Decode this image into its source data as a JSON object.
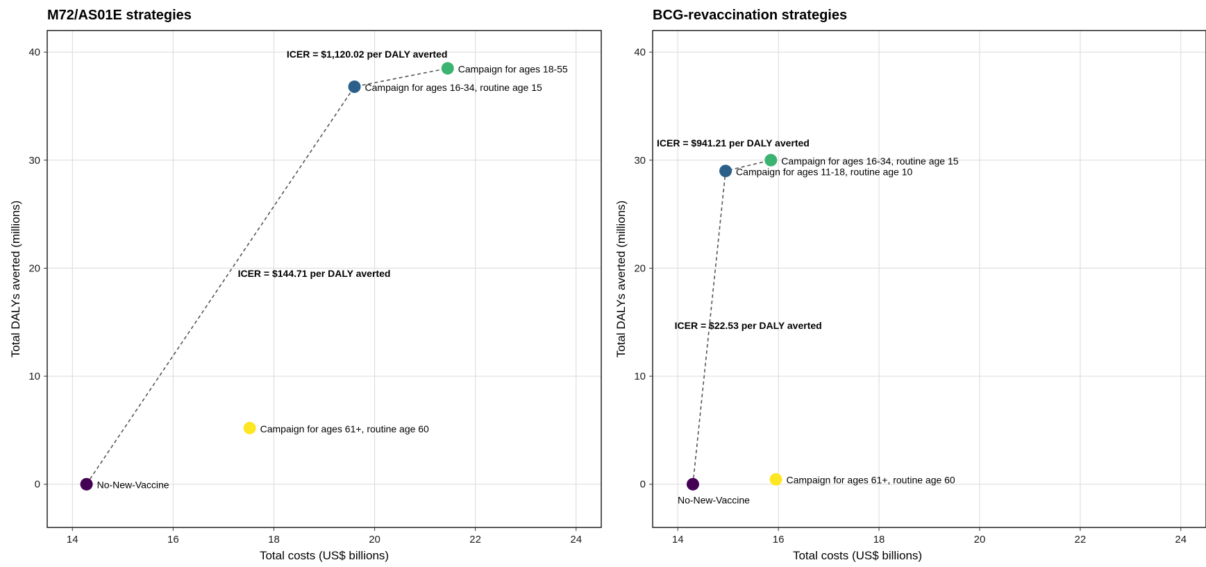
{
  "chart_data": [
    {
      "type": "scatter",
      "title": "M72/AS01E strategies",
      "xlabel": "Total costs (US$ billions)",
      "ylabel": "Total DALYs averted (millions)",
      "xlim": [
        13.5,
        24.5
      ],
      "ylim": [
        -4,
        42
      ],
      "xticks": [
        14,
        16,
        18,
        20,
        22,
        24
      ],
      "yticks": [
        0,
        10,
        20,
        30,
        40
      ],
      "grid": true,
      "points": [
        {
          "label": "No-New-Vaccine",
          "x": 14.28,
          "y": 0,
          "color": "#440154",
          "label_pos": "right"
        },
        {
          "label": "Campaign for ages 61+, routine age 60",
          "x": 17.52,
          "y": 5.2,
          "color": "#FDE725",
          "label_pos": "right"
        },
        {
          "label": "Campaign for ages 16-34, routine age 15",
          "x": 19.6,
          "y": 36.8,
          "color": "#2C5F8A",
          "label_pos": "right"
        },
        {
          "label": "Campaign for ages 18-55",
          "x": 21.45,
          "y": 38.5,
          "color": "#3CB371",
          "label_pos": "right"
        }
      ],
      "frontier": [
        0,
        2,
        3
      ],
      "icer_annotations": [
        {
          "text": "ICER = $144.71 per DALY averted",
          "x": 18.8,
          "y": 19.5
        },
        {
          "text": "ICER = $1,120.02 per DALY averted",
          "x": 19.85,
          "y": 39.8
        }
      ]
    },
    {
      "type": "scatter",
      "title": "BCG-revaccination strategies",
      "xlabel": "Total costs (US$ billions)",
      "ylabel": "Total DALYs averted (millions)",
      "xlim": [
        13.5,
        24.5
      ],
      "ylim": [
        -4,
        42
      ],
      "xticks": [
        14,
        16,
        18,
        20,
        22,
        24
      ],
      "yticks": [
        0,
        10,
        20,
        30,
        40
      ],
      "grid": true,
      "points": [
        {
          "label": "No-New-Vaccine",
          "x": 14.3,
          "y": 0,
          "color": "#440154",
          "label_pos": "below"
        },
        {
          "label": "Campaign for ages 61+, routine age 60",
          "x": 15.95,
          "y": 0.45,
          "color": "#FDE725",
          "label_pos": "right"
        },
        {
          "label": "Campaign for ages 11-18, routine age 10",
          "x": 14.95,
          "y": 29.0,
          "color": "#2C5F8A",
          "label_pos": "right"
        },
        {
          "label": "Campaign for ages 16-34, routine age 15",
          "x": 15.85,
          "y": 30.0,
          "color": "#3CB371",
          "label_pos": "right"
        }
      ],
      "frontier": [
        0,
        2,
        3
      ],
      "icer_annotations": [
        {
          "text": "ICER = $22.53 per DALY averted",
          "x": 15.4,
          "y": 14.7
        },
        {
          "text": "ICER = $941.21 per DALY averted",
          "x": 15.1,
          "y": 31.6
        }
      ]
    }
  ]
}
